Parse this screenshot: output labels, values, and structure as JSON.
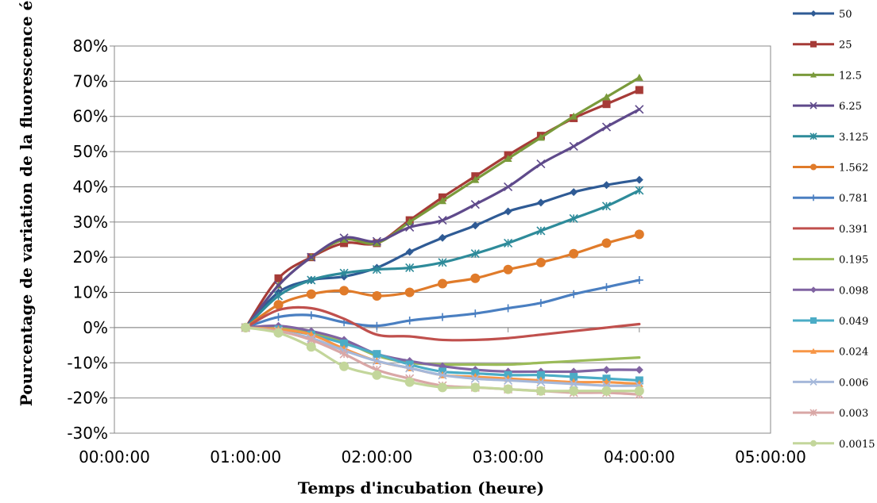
{
  "chart_data": {
    "type": "line",
    "title": "",
    "xlabel": "Temps d'incubation (heure)",
    "ylabel": "Pourcentage de variation de la fluorescence émise",
    "xlim": [
      "00:00:00",
      "05:00:00"
    ],
    "ylim": [
      -0.3,
      0.8
    ],
    "x_ticks": [
      "00:00:00",
      "01:00:00",
      "02:00:00",
      "03:00:00",
      "04:00:00",
      "05:00:00"
    ],
    "y_ticks": [
      "-30%",
      "-20%",
      "-10%",
      "0%",
      "10%",
      "20%",
      "30%",
      "40%",
      "50%",
      "60%",
      "70%",
      "80%"
    ],
    "grid": "horizontal",
    "legend_position": "right",
    "x": [
      "01:00:00",
      "01:15:00",
      "01:30:00",
      "01:45:00",
      "02:00:00",
      "02:15:00",
      "02:30:00",
      "02:45:00",
      "03:00:00",
      "03:15:00",
      "03:30:00",
      "03:45:00",
      "04:00:00"
    ],
    "series": [
      {
        "name": "50",
        "color": "#2F5B95",
        "marker": "diamond",
        "values": [
          0.0,
          0.1,
          0.135,
          0.145,
          0.17,
          0.215,
          0.255,
          0.29,
          0.33,
          0.355,
          0.385,
          0.405,
          0.42
        ]
      },
      {
        "name": "25",
        "color": "#A63B37",
        "marker": "square",
        "values": [
          0.0,
          0.14,
          0.2,
          0.24,
          0.24,
          0.305,
          0.37,
          0.43,
          0.49,
          0.545,
          0.595,
          0.635,
          0.675
        ]
      },
      {
        "name": "12.5",
        "color": "#7A9A3B",
        "marker": "triangle",
        "values": [
          0.0,
          0.12,
          0.2,
          0.25,
          0.24,
          0.3,
          0.36,
          0.42,
          0.48,
          0.54,
          0.6,
          0.655,
          0.71
        ]
      },
      {
        "name": "6.25",
        "color": "#5F4A8B",
        "marker": "x",
        "values": [
          0.0,
          0.12,
          0.2,
          0.255,
          0.245,
          0.285,
          0.305,
          0.35,
          0.4,
          0.465,
          0.515,
          0.57,
          0.62
        ]
      },
      {
        "name": "3.125",
        "color": "#2E8B9A",
        "marker": "star",
        "values": [
          0.0,
          0.09,
          0.135,
          0.155,
          0.165,
          0.17,
          0.185,
          0.21,
          0.24,
          0.275,
          0.31,
          0.345,
          0.39
        ]
      },
      {
        "name": "1.562",
        "color": "#E07B2A",
        "marker": "circle",
        "values": [
          0.0,
          0.065,
          0.095,
          0.105,
          0.09,
          0.1,
          0.125,
          0.14,
          0.165,
          0.185,
          0.21,
          0.24,
          0.265
        ]
      },
      {
        "name": "0.781",
        "color": "#4A7FC1",
        "marker": "plus",
        "values": [
          0.0,
          0.03,
          0.035,
          0.015,
          0.005,
          0.02,
          0.03,
          0.04,
          0.055,
          0.07,
          0.095,
          0.115,
          0.135
        ]
      },
      {
        "name": "0.391",
        "color": "#C0504D",
        "marker": "none",
        "values": [
          0.0,
          0.05,
          0.055,
          0.025,
          -0.02,
          -0.025,
          -0.035,
          -0.035,
          -0.03,
          -0.02,
          -0.01,
          0.0,
          0.01
        ]
      },
      {
        "name": "0.195",
        "color": "#9BBB59",
        "marker": "none",
        "values": [
          0.0,
          0.0,
          -0.015,
          -0.04,
          -0.08,
          -0.1,
          -0.105,
          -0.105,
          -0.105,
          -0.1,
          -0.095,
          -0.09,
          -0.085
        ]
      },
      {
        "name": "0.098",
        "color": "#8064A2",
        "marker": "diamond",
        "values": [
          0.0,
          0.005,
          -0.01,
          -0.035,
          -0.075,
          -0.095,
          -0.11,
          -0.12,
          -0.125,
          -0.125,
          -0.125,
          -0.12,
          -0.12
        ]
      },
      {
        "name": "0.049",
        "color": "#4BACC6",
        "marker": "square",
        "values": [
          0.0,
          -0.005,
          -0.02,
          -0.045,
          -0.075,
          -0.105,
          -0.125,
          -0.13,
          -0.135,
          -0.135,
          -0.14,
          -0.145,
          -0.15
        ]
      },
      {
        "name": "0.024",
        "color": "#F79646",
        "marker": "triangle",
        "values": [
          0.0,
          -0.005,
          -0.02,
          -0.06,
          -0.095,
          -0.115,
          -0.135,
          -0.14,
          -0.145,
          -0.15,
          -0.155,
          -0.155,
          -0.16
        ]
      },
      {
        "name": "0.006",
        "color": "#A5B8DA",
        "marker": "x",
        "values": [
          0.0,
          -0.01,
          -0.03,
          -0.065,
          -0.095,
          -0.115,
          -0.135,
          -0.145,
          -0.15,
          -0.155,
          -0.16,
          -0.165,
          -0.165
        ]
      },
      {
        "name": "0.003",
        "color": "#D9A7A6",
        "marker": "star",
        "values": [
          0.0,
          -0.01,
          -0.035,
          -0.075,
          -0.12,
          -0.145,
          -0.165,
          -0.17,
          -0.175,
          -0.18,
          -0.185,
          -0.185,
          -0.19
        ]
      },
      {
        "name": "0.0015",
        "color": "#C3D69B",
        "marker": "circle",
        "values": [
          0.0,
          -0.015,
          -0.055,
          -0.11,
          -0.135,
          -0.155,
          -0.17,
          -0.17,
          -0.175,
          -0.18,
          -0.18,
          -0.18,
          -0.18
        ]
      }
    ]
  }
}
